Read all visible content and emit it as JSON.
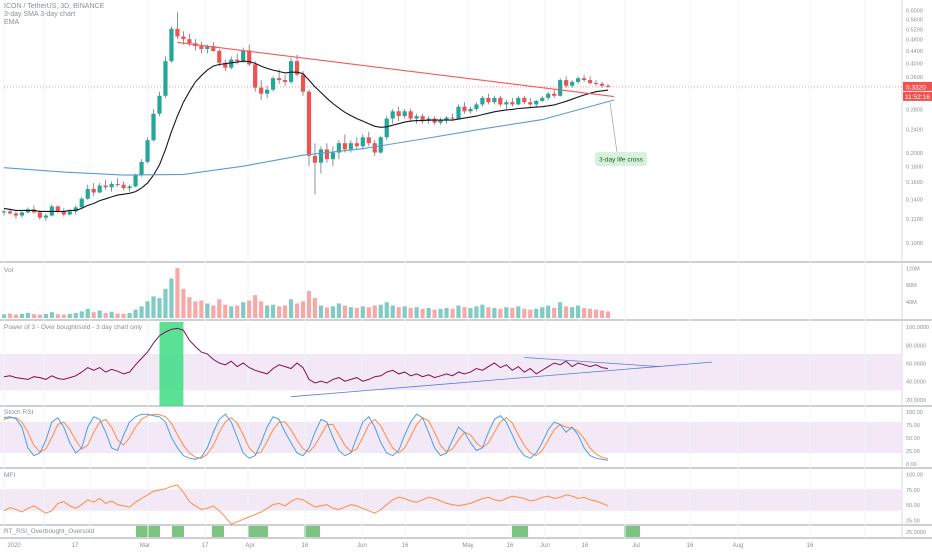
{
  "header": {
    "symbol_line": "ICON / TetherUS, 3D, BINANCE",
    "ma_line": "3-day SMA 3-day chart",
    "ema_line": "EMA"
  },
  "annotation": {
    "text": "3-day life cross"
  },
  "price_scale": {
    "ticks": [
      "0.6000",
      "0.5600",
      "0.5200",
      "0.4800",
      "0.4400",
      "0.4000",
      "0.3600",
      "0.3200",
      "0.2800",
      "0.2400",
      "0.2000",
      "0.1800",
      "0.1600",
      "0.1400",
      "0.1200",
      "0.1000"
    ],
    "last_price": "0.3320",
    "countdown": "11:52:16"
  },
  "volume_pane": {
    "title": "Vol",
    "ticks": [
      "120M",
      "80M",
      "40M"
    ]
  },
  "power_pane": {
    "title": "Power of 3 - Over bought/sold - 3 day chart only",
    "ticks": [
      "100.0000",
      "80.0000",
      "60.0000",
      "40.0000",
      "20.0000"
    ]
  },
  "stoch_pane": {
    "title": "Stoch RSI",
    "ticks": [
      "100.00",
      "75.00",
      "50.00",
      "25.00",
      "0.00"
    ]
  },
  "mfi_pane": {
    "title": "MFI",
    "ticks": [
      "100.00",
      "75.00",
      "50.00",
      "25.00"
    ]
  },
  "rt_pane": {
    "title": "RT_RSI_Overbought_Oversold",
    "ticks": [
      "25.0000"
    ]
  },
  "time_axis": {
    "labels": [
      "2020",
      "17",
      "Mar",
      "17",
      "Apr",
      "16",
      "Jun",
      "16",
      "May",
      "16",
      "Jun",
      "16",
      "Jul",
      "16",
      "Aug",
      "16"
    ]
  },
  "colors": {
    "up": "#26a69a",
    "down": "#ef5350",
    "wick": "#5d606b",
    "ema_short": "#131722",
    "ma_red": "#f15a5a",
    "ma_blue": "#5b9bd5",
    "power": "#880e4f",
    "trend": "#5b7bd8",
    "green_zone": "#3ddc84",
    "stoch_k": "#4b9ee6",
    "stoch_d": "#ff8c42",
    "mfi": "#ff8c42",
    "band": "#f3e8f5",
    "annotation_bg": "#d8f1dd",
    "price_label": "#ef5350"
  },
  "chart_data": {
    "type": "candlestick",
    "title": "ICON / TetherUS, 3D, BINANCE",
    "ylim": [
      0.09,
      0.62
    ],
    "candles": [
      [
        0.126,
        0.129,
        0.123,
        0.127
      ],
      [
        0.127,
        0.13,
        0.124,
        0.125
      ],
      [
        0.125,
        0.127,
        0.12,
        0.123
      ],
      [
        0.123,
        0.128,
        0.121,
        0.126
      ],
      [
        0.126,
        0.131,
        0.125,
        0.129
      ],
      [
        0.129,
        0.133,
        0.125,
        0.126
      ],
      [
        0.126,
        0.128,
        0.119,
        0.121
      ],
      [
        0.121,
        0.125,
        0.118,
        0.123
      ],
      [
        0.123,
        0.134,
        0.122,
        0.132
      ],
      [
        0.132,
        0.133,
        0.125,
        0.127
      ],
      [
        0.127,
        0.13,
        0.122,
        0.124
      ],
      [
        0.124,
        0.129,
        0.123,
        0.127
      ],
      [
        0.127,
        0.133,
        0.124,
        0.131
      ],
      [
        0.131,
        0.142,
        0.13,
        0.14
      ],
      [
        0.14,
        0.156,
        0.139,
        0.151
      ],
      [
        0.151,
        0.158,
        0.143,
        0.147
      ],
      [
        0.147,
        0.158,
        0.146,
        0.155
      ],
      [
        0.155,
        0.162,
        0.15,
        0.153
      ],
      [
        0.153,
        0.16,
        0.148,
        0.157
      ],
      [
        0.157,
        0.164,
        0.154,
        0.156
      ],
      [
        0.156,
        0.16,
        0.15,
        0.152
      ],
      [
        0.152,
        0.156,
        0.148,
        0.154
      ],
      [
        0.154,
        0.17,
        0.153,
        0.168
      ],
      [
        0.168,
        0.19,
        0.166,
        0.186
      ],
      [
        0.186,
        0.225,
        0.184,
        0.22
      ],
      [
        0.22,
        0.28,
        0.218,
        0.27
      ],
      [
        0.27,
        0.32,
        0.265,
        0.31
      ],
      [
        0.31,
        0.42,
        0.305,
        0.405
      ],
      [
        0.405,
        0.53,
        0.4,
        0.52
      ],
      [
        0.52,
        0.59,
        0.48,
        0.49
      ],
      [
        0.49,
        0.51,
        0.46,
        0.48
      ],
      [
        0.48,
        0.5,
        0.455,
        0.465
      ],
      [
        0.465,
        0.48,
        0.44,
        0.455
      ],
      [
        0.455,
        0.47,
        0.43,
        0.445
      ],
      [
        0.445,
        0.46,
        0.43,
        0.455
      ],
      [
        0.455,
        0.47,
        0.435,
        0.438
      ],
      [
        0.438,
        0.445,
        0.39,
        0.4
      ],
      [
        0.4,
        0.41,
        0.375,
        0.385
      ],
      [
        0.385,
        0.42,
        0.38,
        0.41
      ],
      [
        0.41,
        0.43,
        0.395,
        0.405
      ],
      [
        0.405,
        0.45,
        0.4,
        0.44
      ],
      [
        0.44,
        0.46,
        0.39,
        0.395
      ],
      [
        0.395,
        0.405,
        0.32,
        0.33
      ],
      [
        0.33,
        0.35,
        0.3,
        0.315
      ],
      [
        0.315,
        0.335,
        0.305,
        0.325
      ],
      [
        0.325,
        0.36,
        0.32,
        0.355
      ],
      [
        0.355,
        0.38,
        0.34,
        0.35
      ],
      [
        0.35,
        0.365,
        0.335,
        0.345
      ],
      [
        0.345,
        0.415,
        0.34,
        0.405
      ],
      [
        0.405,
        0.425,
        0.36,
        0.365
      ],
      [
        0.365,
        0.375,
        0.31,
        0.32
      ],
      [
        0.32,
        0.325,
        0.18,
        0.195
      ],
      [
        0.195,
        0.215,
        0.145,
        0.185
      ],
      [
        0.185,
        0.21,
        0.17,
        0.205
      ],
      [
        0.205,
        0.215,
        0.185,
        0.19
      ],
      [
        0.19,
        0.21,
        0.18,
        0.2
      ],
      [
        0.2,
        0.22,
        0.19,
        0.215
      ],
      [
        0.215,
        0.23,
        0.2,
        0.205
      ],
      [
        0.205,
        0.22,
        0.2,
        0.215
      ],
      [
        0.215,
        0.225,
        0.205,
        0.21
      ],
      [
        0.21,
        0.23,
        0.205,
        0.225
      ],
      [
        0.225,
        0.235,
        0.21,
        0.215
      ],
      [
        0.215,
        0.22,
        0.195,
        0.2
      ],
      [
        0.2,
        0.228,
        0.198,
        0.225
      ],
      [
        0.225,
        0.265,
        0.22,
        0.26
      ],
      [
        0.26,
        0.28,
        0.25,
        0.275
      ],
      [
        0.275,
        0.285,
        0.255,
        0.265
      ],
      [
        0.265,
        0.28,
        0.26,
        0.275
      ],
      [
        0.275,
        0.28,
        0.255,
        0.26
      ],
      [
        0.26,
        0.27,
        0.25,
        0.265
      ],
      [
        0.265,
        0.27,
        0.25,
        0.255
      ],
      [
        0.255,
        0.265,
        0.25,
        0.26
      ],
      [
        0.26,
        0.265,
        0.248,
        0.252
      ],
      [
        0.252,
        0.262,
        0.248,
        0.258
      ],
      [
        0.258,
        0.265,
        0.25,
        0.262
      ],
      [
        0.262,
        0.27,
        0.255,
        0.26
      ],
      [
        0.26,
        0.29,
        0.258,
        0.285
      ],
      [
        0.285,
        0.295,
        0.27,
        0.275
      ],
      [
        0.275,
        0.285,
        0.27,
        0.28
      ],
      [
        0.28,
        0.295,
        0.275,
        0.29
      ],
      [
        0.29,
        0.31,
        0.285,
        0.305
      ],
      [
        0.305,
        0.315,
        0.29,
        0.295
      ],
      [
        0.295,
        0.31,
        0.29,
        0.305
      ],
      [
        0.305,
        0.31,
        0.285,
        0.29
      ],
      [
        0.29,
        0.3,
        0.28,
        0.295
      ],
      [
        0.295,
        0.305,
        0.285,
        0.29
      ],
      [
        0.29,
        0.31,
        0.288,
        0.305
      ],
      [
        0.305,
        0.31,
        0.29,
        0.295
      ],
      [
        0.295,
        0.305,
        0.285,
        0.29
      ],
      [
        0.29,
        0.3,
        0.285,
        0.298
      ],
      [
        0.298,
        0.31,
        0.295,
        0.305
      ],
      [
        0.305,
        0.32,
        0.3,
        0.315
      ],
      [
        0.315,
        0.325,
        0.305,
        0.31
      ],
      [
        0.31,
        0.355,
        0.308,
        0.35
      ],
      [
        0.35,
        0.36,
        0.33,
        0.335
      ],
      [
        0.335,
        0.35,
        0.33,
        0.345
      ],
      [
        0.345,
        0.36,
        0.34,
        0.355
      ],
      [
        0.355,
        0.365,
        0.345,
        0.35
      ],
      [
        0.35,
        0.36,
        0.338,
        0.342
      ],
      [
        0.342,
        0.35,
        0.335,
        0.34
      ],
      [
        0.34,
        0.345,
        0.33,
        0.335
      ],
      [
        0.335,
        0.34,
        0.33,
        0.332
      ]
    ],
    "volume": [
      9,
      11,
      8,
      10,
      12,
      9,
      8,
      10,
      14,
      9,
      8,
      10,
      12,
      16,
      22,
      14,
      18,
      12,
      15,
      11,
      10,
      12,
      20,
      28,
      40,
      52,
      48,
      70,
      95,
      120,
      70,
      50,
      40,
      42,
      35,
      30,
      45,
      32,
      28,
      30,
      38,
      42,
      55,
      40,
      30,
      32,
      28,
      30,
      45,
      35,
      40,
      65,
      48,
      30,
      25,
      28,
      35,
      30,
      26,
      24,
      28,
      26,
      30,
      32,
      38,
      30,
      26,
      28,
      24,
      26,
      22,
      24,
      20,
      22,
      24,
      22,
      30,
      26,
      24,
      28,
      32,
      26,
      24,
      22,
      26,
      24,
      28,
      22,
      20,
      22,
      26,
      30,
      24,
      38,
      28,
      26,
      30,
      24,
      22,
      20,
      18,
      16
    ],
    "ema_short": [
      0.13,
      0.129,
      0.128,
      0.128,
      0.128,
      0.128,
      0.127,
      0.127,
      0.127,
      0.127,
      0.127,
      0.128,
      0.128,
      0.13,
      0.133,
      0.135,
      0.138,
      0.14,
      0.142,
      0.144,
      0.145,
      0.146,
      0.148,
      0.152,
      0.158,
      0.168,
      0.182,
      0.205,
      0.235,
      0.265,
      0.295,
      0.32,
      0.345,
      0.362,
      0.378,
      0.39,
      0.395,
      0.397,
      0.4,
      0.402,
      0.405,
      0.404,
      0.398,
      0.39,
      0.383,
      0.378,
      0.374,
      0.37,
      0.372,
      0.372,
      0.368,
      0.35,
      0.332,
      0.318,
      0.304,
      0.292,
      0.282,
      0.273,
      0.266,
      0.26,
      0.255,
      0.25,
      0.245,
      0.243,
      0.244,
      0.247,
      0.25,
      0.253,
      0.255,
      0.256,
      0.256,
      0.257,
      0.257,
      0.257,
      0.257,
      0.257,
      0.259,
      0.261,
      0.263,
      0.265,
      0.268,
      0.271,
      0.274,
      0.276,
      0.278,
      0.279,
      0.281,
      0.282,
      0.283,
      0.284,
      0.285,
      0.287,
      0.289,
      0.293,
      0.297,
      0.302,
      0.307,
      0.312,
      0.316,
      0.32,
      0.322,
      0.324
    ],
    "ma_red": [
      [
        29,
        0.468
      ],
      [
        102,
        0.308
      ]
    ],
    "ma_blue": [
      [
        0,
        0.178
      ],
      [
        10,
        0.172
      ],
      [
        20,
        0.168
      ],
      [
        30,
        0.169
      ],
      [
        40,
        0.18
      ],
      [
        50,
        0.196
      ],
      [
        60,
        0.206
      ],
      [
        70,
        0.222
      ],
      [
        80,
        0.24
      ],
      [
        90,
        0.258
      ],
      [
        102,
        0.3
      ]
    ],
    "power": [
      45,
      46,
      44,
      43,
      42,
      45,
      44,
      42,
      46,
      43,
      42,
      44,
      46,
      50,
      55,
      52,
      55,
      50,
      53,
      51,
      48,
      50,
      58,
      65,
      72,
      82,
      90,
      94,
      97,
      98,
      96,
      85,
      78,
      72,
      70,
      64,
      60,
      58,
      62,
      56,
      60,
      55,
      52,
      50,
      48,
      54,
      58,
      56,
      54,
      60,
      55,
      42,
      38,
      40,
      38,
      42,
      44,
      40,
      42,
      44,
      40,
      42,
      45,
      46,
      50,
      52,
      48,
      50,
      46,
      48,
      45,
      47,
      44,
      46,
      48,
      46,
      50,
      48,
      50,
      54,
      52,
      56,
      60,
      55,
      58,
      52,
      56,
      50,
      54,
      48,
      52,
      56,
      60,
      58,
      62,
      56,
      60,
      58,
      56,
      58,
      55,
      54
    ],
    "power_band": [
      70,
      30
    ],
    "stoch_k": [
      88,
      90,
      86,
      70,
      30,
      15,
      20,
      45,
      80,
      88,
      70,
      40,
      20,
      30,
      70,
      90,
      85,
      60,
      30,
      25,
      55,
      80,
      90,
      95,
      95,
      92,
      90,
      80,
      50,
      30,
      15,
      10,
      8,
      12,
      30,
      60,
      85,
      95,
      80,
      50,
      20,
      10,
      15,
      40,
      70,
      90,
      85,
      60,
      40,
      20,
      15,
      30,
      60,
      85,
      80,
      50,
      25,
      15,
      20,
      50,
      80,
      90,
      70,
      40,
      20,
      15,
      25,
      55,
      80,
      95,
      88,
      60,
      30,
      15,
      20,
      45,
      70,
      60,
      40,
      25,
      30,
      60,
      85,
      92,
      80,
      55,
      30,
      15,
      10,
      20,
      40,
      65,
      80,
      75,
      60,
      70,
      55,
      30,
      15,
      10,
      8,
      6
    ],
    "stoch_d": [
      85,
      88,
      88,
      80,
      60,
      35,
      22,
      28,
      50,
      75,
      80,
      65,
      45,
      28,
      35,
      60,
      80,
      85,
      70,
      45,
      35,
      50,
      70,
      85,
      92,
      95,
      94,
      90,
      78,
      55,
      35,
      20,
      12,
      10,
      18,
      35,
      60,
      80,
      88,
      78,
      55,
      30,
      18,
      22,
      42,
      65,
      80,
      80,
      65,
      45,
      28,
      22,
      35,
      55,
      75,
      75,
      55,
      35,
      22,
      28,
      50,
      75,
      85,
      72,
      50,
      30,
      20,
      30,
      52,
      75,
      88,
      82,
      60,
      35,
      22,
      28,
      45,
      60,
      55,
      40,
      30,
      40,
      60,
      80,
      88,
      78,
      55,
      35,
      20,
      15,
      25,
      45,
      65,
      75,
      70,
      68,
      62,
      48,
      30,
      18,
      12,
      9
    ],
    "mfi": [
      40,
      45,
      42,
      38,
      44,
      48,
      42,
      36,
      40,
      52,
      55,
      48,
      44,
      50,
      58,
      54,
      60,
      52,
      56,
      50,
      48,
      46,
      54,
      60,
      66,
      72,
      74,
      76,
      80,
      82,
      70,
      55,
      48,
      42,
      44,
      48,
      40,
      30,
      18,
      22,
      26,
      30,
      34,
      38,
      44,
      50,
      52,
      48,
      55,
      60,
      58,
      52,
      46,
      48,
      50,
      44,
      42,
      46,
      50,
      48,
      44,
      40,
      36,
      42,
      50,
      58,
      62,
      60,
      56,
      54,
      58,
      62,
      60,
      56,
      52,
      50,
      48,
      50,
      52,
      56,
      60,
      62,
      58,
      56,
      60,
      64,
      62,
      60,
      56,
      58,
      62,
      64,
      60,
      62,
      66,
      64,
      60,
      62,
      58,
      56,
      52,
      48
    ],
    "mfi_band": [
      75,
      40
    ],
    "rt_bars": [
      [
        14,
        20
      ],
      [
        23,
        26
      ],
      [
        33,
        36
      ],
      [
        42,
        47
      ],
      [
        56,
        60
      ],
      [
        108,
        112
      ],
      [
        136,
        140
      ]
    ]
  }
}
